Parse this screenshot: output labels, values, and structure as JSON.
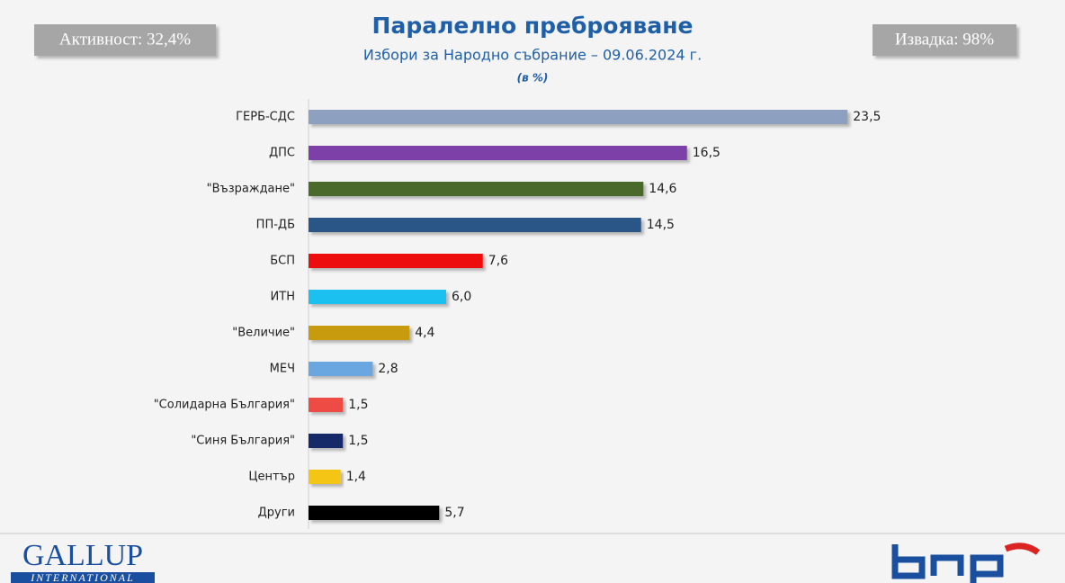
{
  "chart_data": {
    "type": "bar",
    "orientation": "horizontal",
    "title": "Паралелно преброяване",
    "subtitle": "Избори за Народно събрание – 09.06.2024 г.",
    "note": "(в %)",
    "categories": [
      "ГЕРБ-СДС",
      "ДПС",
      "\"Възраждане\"",
      "ПП-ДБ",
      "БСП",
      "ИТН",
      "\"Величие\"",
      "МЕЧ",
      "\"Солидарна България\"",
      "\"Синя България\"",
      "Център",
      "Други"
    ],
    "values": [
      23.5,
      16.5,
      14.6,
      14.5,
      7.6,
      6.0,
      4.4,
      2.8,
      1.5,
      1.5,
      1.4,
      5.7
    ],
    "value_labels": [
      "23,5",
      "16,5",
      "14,6",
      "14,5",
      "7,6",
      "6,0",
      "4,4",
      "2,8",
      "1,5",
      "1,5",
      "1,4",
      "5,7"
    ],
    "colors": [
      "#8ea0bf",
      "#7b3fa8",
      "#4a6a2a",
      "#2a5587",
      "#ee1111",
      "#1ec0f0",
      "#c89a10",
      "#6aa6e0",
      "#ef4b45",
      "#12296b",
      "#f5c518",
      "#000000"
    ]
  },
  "badges": {
    "turnout": "Активност: 32,4%",
    "sample": "Извадка: 98%"
  },
  "footer": {
    "logo": "GALLUP",
    "logo_sub": "INTERNATIONAL"
  }
}
